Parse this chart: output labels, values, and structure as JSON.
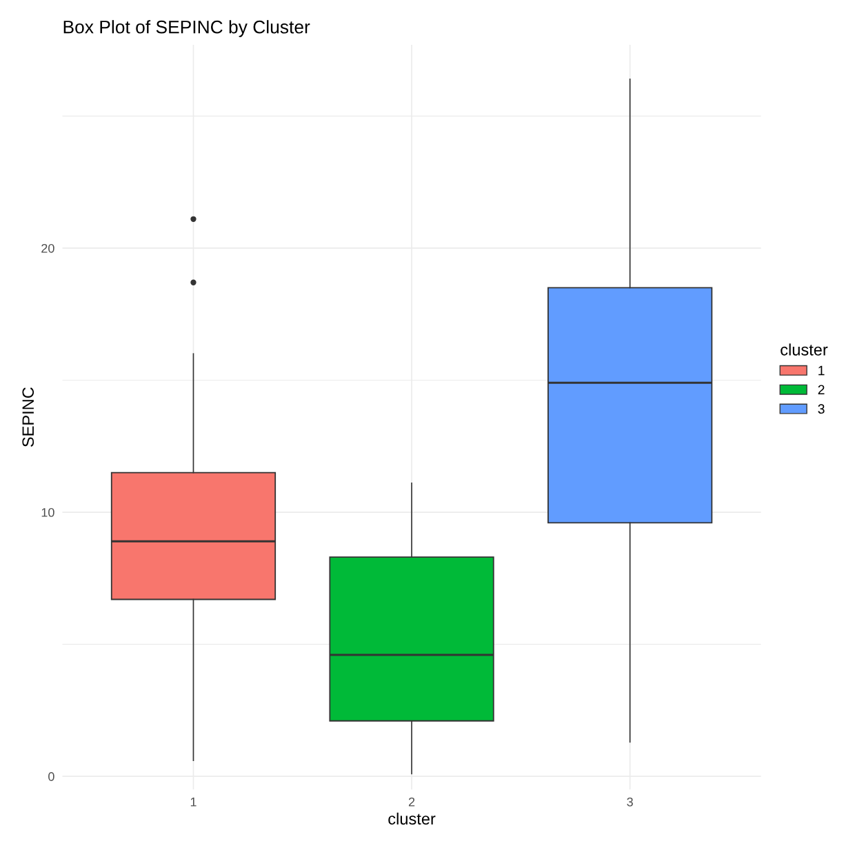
{
  "chart_data": {
    "type": "box",
    "title": "Box Plot of SEPINC by Cluster",
    "xlabel": "cluster",
    "ylabel": "SEPINC",
    "legend_title": "cluster",
    "categories": [
      "1",
      "2",
      "3"
    ],
    "series": [
      {
        "name": "1",
        "color": "#f8766d",
        "boxes": [
          {
            "low": 0.6,
            "q1": 6.7,
            "median": 8.9,
            "q3": 11.5,
            "high": 16.0,
            "outliers": [
              21.1,
              18.7
            ]
          },
          null,
          null
        ]
      },
      {
        "name": "2",
        "color": "#00ba38",
        "boxes": [
          null,
          {
            "low": 0.1,
            "q1": 2.1,
            "median": 4.6,
            "q3": 8.3,
            "high": 11.1
          },
          null
        ]
      },
      {
        "name": "3",
        "color": "#619cff",
        "boxes": [
          null,
          null,
          {
            "low": 1.3,
            "q1": 9.6,
            "median": 14.9,
            "q3": 18.5,
            "high": 26.4
          }
        ]
      }
    ],
    "ylim": [
      -0.5,
      27.7
    ],
    "yticks": [
      0,
      10,
      20
    ],
    "grid": true,
    "legend": "right"
  }
}
